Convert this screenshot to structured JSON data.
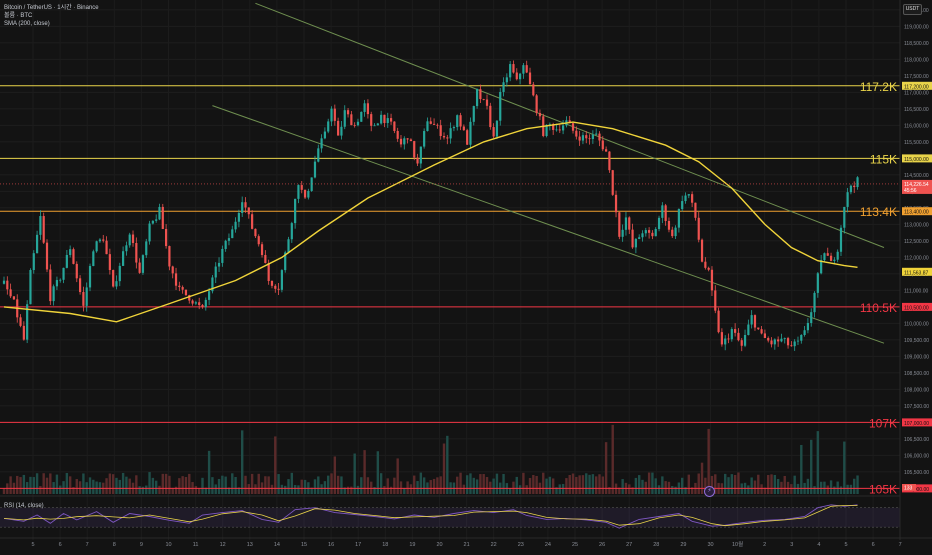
{
  "legend": {
    "symbol": "Bitcoin / TetherUS · 1시간 · Binance",
    "volume": "볼륨 · BTC",
    "sma": "SMA (200, close)"
  },
  "currency_badge": "USDT",
  "rsi_legend": "RSI (14, close)",
  "colors": {
    "bg": "#131313",
    "up": "#26a69a",
    "down": "#ef5350",
    "sma": "#f0d43a",
    "channel": "#6f8f50",
    "level_yellow": "#e9d44a",
    "level_orange": "#f0a030",
    "level_red": "#f23645",
    "rsi": "#e9d44a",
    "rsi_band": "#7e57c2"
  },
  "chart_data": {
    "type": "candlestick",
    "timeframe": "1h",
    "ylim": [
      104800,
      119800
    ],
    "price_ticks": [
      105500,
      106000,
      106500,
      107000,
      107500,
      108000,
      108500,
      109000,
      109500,
      110000,
      110500,
      111000,
      111500,
      112000,
      112500,
      113000,
      113500,
      114000,
      114500,
      115000,
      115500,
      116000,
      116500,
      117000,
      117500,
      118000,
      118500,
      119000,
      119500
    ],
    "x_ticks": [
      "5",
      "6",
      "7",
      "8",
      "9",
      "10",
      "11",
      "12",
      "13",
      "14",
      "15",
      "16",
      "17",
      "18",
      "19",
      "20",
      "21",
      "22",
      "23",
      "24",
      "25",
      "26",
      "27",
      "28",
      "29",
      "30",
      "10월",
      "2",
      "3",
      "4",
      "5",
      "6",
      "7"
    ],
    "price_path": [
      [
        0,
        111200
      ],
      [
        3,
        110600
      ],
      [
        6,
        109500
      ],
      [
        8,
        111500
      ],
      [
        11,
        113200
      ],
      [
        14,
        110800
      ],
      [
        17,
        111400
      ],
      [
        20,
        112300
      ],
      [
        24,
        110500
      ],
      [
        27,
        112300
      ],
      [
        30,
        112600
      ],
      [
        33,
        111000
      ],
      [
        35,
        111800
      ],
      [
        38,
        112800
      ],
      [
        41,
        111500
      ],
      [
        44,
        112900
      ],
      [
        47,
        113400
      ],
      [
        50,
        111800
      ],
      [
        53,
        111000
      ],
      [
        56,
        110800
      ],
      [
        60,
        110400
      ],
      [
        63,
        111300
      ],
      [
        66,
        112200
      ],
      [
        69,
        112800
      ],
      [
        72,
        113800
      ],
      [
        75,
        112900
      ],
      [
        78,
        112200
      ],
      [
        80,
        111300
      ],
      [
        83,
        111100
      ],
      [
        86,
        112600
      ],
      [
        89,
        114300
      ],
      [
        91,
        113700
      ],
      [
        93,
        114500
      ],
      [
        95,
        115300
      ],
      [
        97,
        115700
      ],
      [
        99,
        116600
      ],
      [
        101,
        115600
      ],
      [
        103,
        116400
      ],
      [
        106,
        116000
      ],
      [
        109,
        116600
      ],
      [
        111,
        115900
      ],
      [
        114,
        116300
      ],
      [
        117,
        116000
      ],
      [
        120,
        115400
      ],
      [
        122,
        115700
      ],
      [
        125,
        114800
      ],
      [
        128,
        116200
      ],
      [
        131,
        115900
      ],
      [
        134,
        115600
      ],
      [
        137,
        116300
      ],
      [
        140,
        115500
      ],
      [
        143,
        117000
      ],
      [
        146,
        116500
      ],
      [
        148,
        115600
      ],
      [
        150,
        116900
      ],
      [
        153,
        117800
      ],
      [
        155,
        117300
      ],
      [
        157,
        117900
      ],
      [
        159,
        117200
      ],
      [
        161,
        116500
      ],
      [
        163,
        115800
      ],
      [
        165,
        116000
      ],
      [
        167,
        115900
      ],
      [
        170,
        116100
      ],
      [
        173,
        115700
      ],
      [
        176,
        115600
      ],
      [
        179,
        115700
      ],
      [
        182,
        115200
      ],
      [
        184,
        114000
      ],
      [
        186,
        112700
      ],
      [
        188,
        113200
      ],
      [
        190,
        112300
      ],
      [
        193,
        112800
      ],
      [
        196,
        112600
      ],
      [
        199,
        113500
      ],
      [
        202,
        112600
      ],
      [
        205,
        113800
      ],
      [
        207,
        113900
      ],
      [
        209,
        113200
      ],
      [
        211,
        111900
      ],
      [
        213,
        111500
      ],
      [
        215,
        110300
      ],
      [
        217,
        109300
      ],
      [
        220,
        109800
      ],
      [
        223,
        109300
      ],
      [
        226,
        110200
      ],
      [
        229,
        109600
      ],
      [
        232,
        109400
      ],
      [
        235,
        109500
      ],
      [
        238,
        109300
      ],
      [
        240,
        109400
      ],
      [
        242,
        109700
      ],
      [
        244,
        110400
      ],
      [
        246,
        111400
      ],
      [
        248,
        112200
      ],
      [
        250,
        111800
      ],
      [
        252,
        112300
      ],
      [
        254,
        113600
      ],
      [
        256,
        114200
      ],
      [
        258,
        114300
      ]
    ],
    "sma_200_path": [
      [
        0,
        110500
      ],
      [
        20,
        110300
      ],
      [
        34,
        110050
      ],
      [
        50,
        110600
      ],
      [
        70,
        111300
      ],
      [
        84,
        112000
      ],
      [
        95,
        112800
      ],
      [
        110,
        113800
      ],
      [
        130,
        114800
      ],
      [
        145,
        115500
      ],
      [
        158,
        115900
      ],
      [
        172,
        116100
      ],
      [
        184,
        115900
      ],
      [
        200,
        115400
      ],
      [
        210,
        114900
      ],
      [
        220,
        114100
      ],
      [
        230,
        113000
      ],
      [
        238,
        112300
      ],
      [
        246,
        111900
      ],
      [
        254,
        111750
      ],
      [
        258,
        111700
      ]
    ],
    "horizontal_levels": [
      {
        "price": 117200,
        "label": "117.2K",
        "axis_label": "117,200.00",
        "style": "level_yellow"
      },
      {
        "price": 115000,
        "label": "115K",
        "axis_label": "115,000.00",
        "style": "level_yellow"
      },
      {
        "price": 113400,
        "label": "113.4K",
        "axis_label": "113,400.00",
        "style": "level_orange"
      },
      {
        "price": 110500,
        "label": "110.5K",
        "axis_label": "110,500.00",
        "style": "level_red"
      },
      {
        "price": 107000,
        "label": "107K",
        "axis_label": "107,000.00",
        "style": "level_red"
      },
      {
        "price": 105000,
        "label": "105K",
        "axis_label": "105,000.00",
        "style": "level_red"
      }
    ],
    "channel_lines": [
      {
        "from": [
          76,
          119700
        ],
        "to": [
          266,
          112300
        ]
      },
      {
        "from": [
          63,
          116600
        ],
        "to": [
          266,
          109400
        ]
      }
    ],
    "current_price": {
      "value": 114226.54,
      "label": "114,226.54",
      "countdown": "45:56"
    },
    "sma_value": {
      "value": 111563.87,
      "label": "111,563.87"
    },
    "rsi": {
      "ylim": [
        20,
        90
      ],
      "levels": [
        70,
        30
      ],
      "tick": "40.00",
      "value": "76.56",
      "ma_value": "71.60",
      "path": [
        [
          0,
          48
        ],
        [
          6,
          42
        ],
        [
          10,
          55
        ],
        [
          14,
          38
        ],
        [
          18,
          58
        ],
        [
          22,
          45
        ],
        [
          28,
          62
        ],
        [
          33,
          40
        ],
        [
          38,
          58
        ],
        [
          44,
          52
        ],
        [
          50,
          44
        ],
        [
          56,
          38
        ],
        [
          60,
          55
        ],
        [
          66,
          60
        ],
        [
          72,
          64
        ],
        [
          78,
          46
        ],
        [
          83,
          40
        ],
        [
          88,
          66
        ],
        [
          94,
          70
        ],
        [
          100,
          60
        ],
        [
          106,
          56
        ],
        [
          112,
          52
        ],
        [
          118,
          47
        ],
        [
          124,
          55
        ],
        [
          130,
          50
        ],
        [
          136,
          58
        ],
        [
          142,
          64
        ],
        [
          148,
          60
        ],
        [
          154,
          66
        ],
        [
          158,
          54
        ],
        [
          164,
          46
        ],
        [
          170,
          48
        ],
        [
          176,
          45
        ],
        [
          182,
          40
        ],
        [
          186,
          28
        ],
        [
          192,
          46
        ],
        [
          198,
          52
        ],
        [
          204,
          58
        ],
        [
          208,
          42
        ],
        [
          214,
          32
        ],
        [
          218,
          34
        ],
        [
          224,
          40
        ],
        [
          230,
          44
        ],
        [
          236,
          46
        ],
        [
          242,
          52
        ],
        [
          246,
          70
        ],
        [
          250,
          76
        ],
        [
          254,
          73
        ],
        [
          258,
          76
        ]
      ]
    },
    "volume_note": "volume histogram",
    "volume_axis_label": "133"
  }
}
